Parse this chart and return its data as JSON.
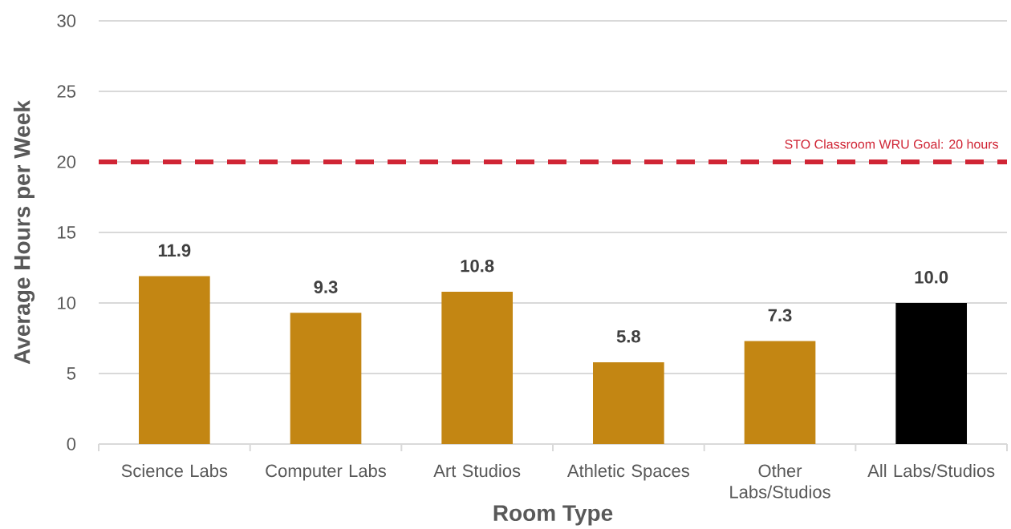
{
  "chart_data": {
    "type": "bar",
    "xlabel": "Room Type",
    "ylabel": "Average Hours per Week",
    "categories": [
      "Science Labs",
      "Computer Labs",
      "Art Studios",
      "Athletic Spaces",
      "Other Labs/Studios",
      "All Labs/Studios"
    ],
    "values": [
      11.9,
      9.3,
      10.8,
      5.8,
      7.3,
      10.0
    ],
    "value_labels": [
      "11.9",
      "9.3",
      "10.8",
      "5.8",
      "7.3",
      "10.0"
    ],
    "colors": [
      "#c38613",
      "#c38613",
      "#c38613",
      "#c38613",
      "#c38613",
      "#000000"
    ],
    "ylim": [
      0,
      30
    ],
    "yticks": [
      0,
      5,
      10,
      15,
      20,
      25,
      30
    ],
    "grid": "y",
    "ref_lines": [
      {
        "axis": "y",
        "value": 20,
        "label": "STO Classroom WRU Goal: 20 hours",
        "color": "#d02535",
        "line_style": "dashed"
      }
    ]
  }
}
